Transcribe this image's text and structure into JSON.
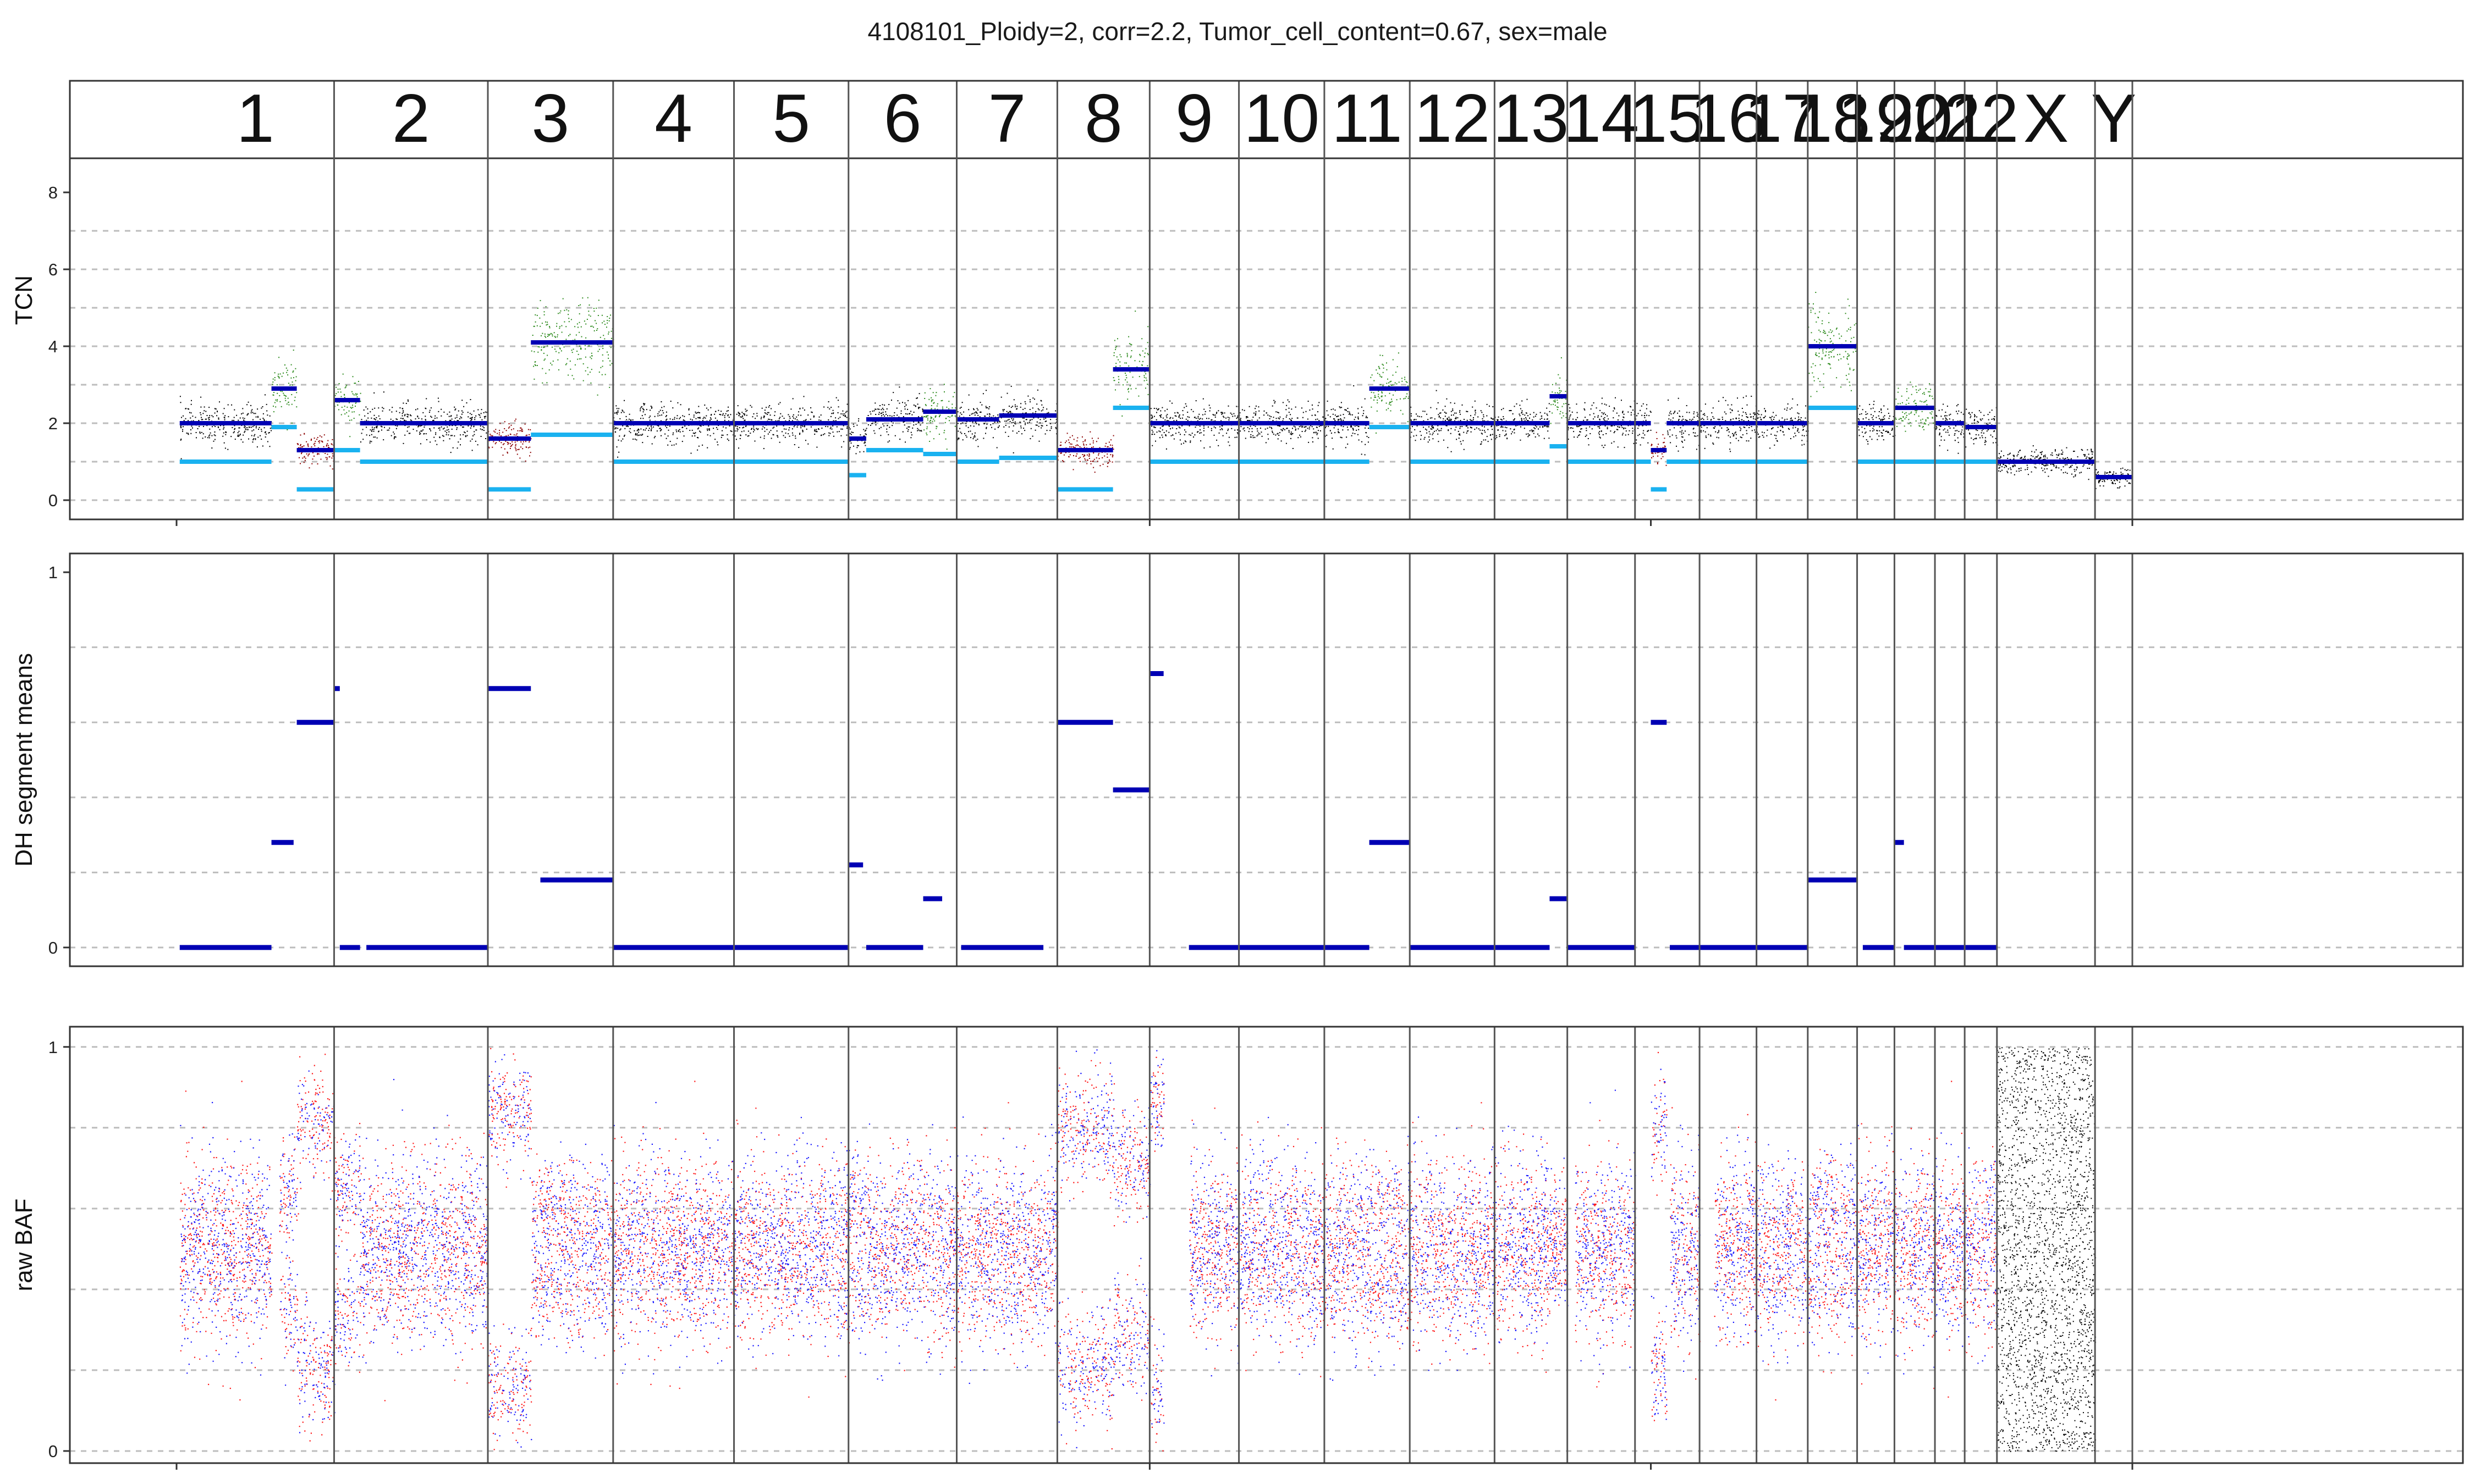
{
  "title": "4108101_Ploidy=2, corr=2.2, Tumor_cell_content=0.67, sex=male",
  "colors": {
    "normal_points": "#000000",
    "gain_points": "#2e8b1e",
    "loss_points": "#8b0000",
    "segment_line": "#0000b4",
    "minor_cn_line": "#1ab2f0",
    "baf_red": "#ff1a1a",
    "baf_blue": "#1a1aff",
    "grid": "#bdbdbd"
  },
  "chart_data": {
    "type": "scatter",
    "chromosomes": [
      {
        "name": "1",
        "start": 0,
        "end": 249
      },
      {
        "name": "2",
        "start": 249,
        "end": 492
      },
      {
        "name": "3",
        "start": 492,
        "end": 690
      },
      {
        "name": "4",
        "start": 690,
        "end": 881
      },
      {
        "name": "5",
        "start": 881,
        "end": 1062
      },
      {
        "name": "6",
        "start": 1062,
        "end": 1233
      },
      {
        "name": "7",
        "start": 1233,
        "end": 1392
      },
      {
        "name": "8",
        "start": 1392,
        "end": 1538
      },
      {
        "name": "9",
        "start": 1538,
        "end": 1679
      },
      {
        "name": "10",
        "start": 1679,
        "end": 1814
      },
      {
        "name": "11",
        "start": 1814,
        "end": 1949
      },
      {
        "name": "12",
        "start": 1949,
        "end": 2083
      },
      {
        "name": "13",
        "start": 2083,
        "end": 2198
      },
      {
        "name": "14",
        "start": 2198,
        "end": 2305
      },
      {
        "name": "15",
        "start": 2305,
        "end": 2407
      },
      {
        "name": "16",
        "start": 2407,
        "end": 2497
      },
      {
        "name": "17",
        "start": 2497,
        "end": 2578
      },
      {
        "name": "18",
        "start": 2578,
        "end": 2656
      },
      {
        "name": "19",
        "start": 2656,
        "end": 2715
      },
      {
        "name": "20",
        "start": 2715,
        "end": 2779
      },
      {
        "name": "21",
        "start": 2779,
        "end": 2826
      },
      {
        "name": "22",
        "start": 2826,
        "end": 2877
      },
      {
        "name": "X",
        "start": 2877,
        "end": 3032
      },
      {
        "name": "Y",
        "start": 3032,
        "end": 3091
      }
    ],
    "panels": [
      {
        "id": "tcn",
        "ylabel": "TCN",
        "ylim": [
          -0.5,
          8.8
        ],
        "yticks": [
          0,
          2,
          4,
          6,
          8
        ],
        "grid_y": [
          0,
          1,
          2,
          3,
          4,
          5,
          6,
          7
        ],
        "segments": [
          {
            "start": 5,
            "end": 150,
            "tcn": 2.0,
            "minor": 1.0,
            "cls": "normal"
          },
          {
            "start": 150,
            "end": 190,
            "tcn": 2.9,
            "minor": 1.9,
            "cls": "gain"
          },
          {
            "start": 190,
            "end": 249,
            "tcn": 1.3,
            "minor": 0.28,
            "cls": "loss"
          },
          {
            "start": 249,
            "end": 290,
            "tcn": 2.6,
            "minor": 1.3,
            "cls": "gain"
          },
          {
            "start": 290,
            "end": 492,
            "tcn": 2.0,
            "minor": 1.0,
            "cls": "normal"
          },
          {
            "start": 492,
            "end": 560,
            "tcn": 1.6,
            "minor": 0.28,
            "cls": "loss"
          },
          {
            "start": 560,
            "end": 690,
            "tcn": 4.1,
            "minor": 1.7,
            "cls": "gain"
          },
          {
            "start": 690,
            "end": 881,
            "tcn": 2.0,
            "minor": 1.0,
            "cls": "normal"
          },
          {
            "start": 881,
            "end": 1062,
            "tcn": 2.0,
            "minor": 1.0,
            "cls": "normal"
          },
          {
            "start": 1062,
            "end": 1090,
            "tcn": 1.6,
            "minor": 0.65,
            "cls": "normal"
          },
          {
            "start": 1090,
            "end": 1180,
            "tcn": 2.1,
            "minor": 1.3,
            "cls": "normal"
          },
          {
            "start": 1180,
            "end": 1233,
            "tcn": 2.3,
            "minor": 1.2,
            "cls": "gain"
          },
          {
            "start": 1233,
            "end": 1300,
            "tcn": 2.1,
            "minor": 1.0,
            "cls": "normal"
          },
          {
            "start": 1300,
            "end": 1392,
            "tcn": 2.2,
            "minor": 1.1,
            "cls": "normal"
          },
          {
            "start": 1392,
            "end": 1480,
            "tcn": 1.3,
            "minor": 0.28,
            "cls": "loss"
          },
          {
            "start": 1480,
            "end": 1538,
            "tcn": 3.4,
            "minor": 2.4,
            "cls": "gain"
          },
          {
            "start": 1538,
            "end": 1679,
            "tcn": 2.0,
            "minor": 1.0,
            "cls": "normal"
          },
          {
            "start": 1679,
            "end": 1814,
            "tcn": 2.0,
            "minor": 1.0,
            "cls": "normal"
          },
          {
            "start": 1814,
            "end": 1885,
            "tcn": 2.0,
            "minor": 1.0,
            "cls": "normal"
          },
          {
            "start": 1885,
            "end": 1949,
            "tcn": 2.9,
            "minor": 1.9,
            "cls": "gain"
          },
          {
            "start": 1949,
            "end": 2083,
            "tcn": 2.0,
            "minor": 1.0,
            "cls": "normal"
          },
          {
            "start": 2083,
            "end": 2170,
            "tcn": 2.0,
            "minor": 1.0,
            "cls": "normal"
          },
          {
            "start": 2170,
            "end": 2198,
            "tcn": 2.7,
            "minor": 1.4,
            "cls": "gain"
          },
          {
            "start": 2198,
            "end": 2305,
            "tcn": 2.0,
            "minor": 1.0,
            "cls": "normal"
          },
          {
            "start": 2305,
            "end": 2330,
            "tcn": 2.0,
            "minor": 1.0,
            "cls": "normal"
          },
          {
            "start": 2330,
            "end": 2355,
            "tcn": 1.3,
            "minor": 0.28,
            "cls": "loss"
          },
          {
            "start": 2355,
            "end": 2407,
            "tcn": 2.0,
            "minor": 1.0,
            "cls": "normal"
          },
          {
            "start": 2407,
            "end": 2497,
            "tcn": 2.0,
            "minor": 1.0,
            "cls": "normal"
          },
          {
            "start": 2497,
            "end": 2578,
            "tcn": 2.0,
            "minor": 1.0,
            "cls": "normal"
          },
          {
            "start": 2578,
            "end": 2656,
            "tcn": 4.0,
            "minor": 2.4,
            "cls": "gain"
          },
          {
            "start": 2656,
            "end": 2715,
            "tcn": 2.0,
            "minor": 1.0,
            "cls": "normal"
          },
          {
            "start": 2715,
            "end": 2779,
            "tcn": 2.4,
            "minor": 1.0,
            "cls": "gain"
          },
          {
            "start": 2779,
            "end": 2826,
            "tcn": 2.0,
            "minor": 1.0,
            "cls": "normal"
          },
          {
            "start": 2826,
            "end": 2877,
            "tcn": 1.9,
            "minor": 1.0,
            "cls": "normal"
          },
          {
            "start": 2877,
            "end": 3032,
            "tcn": 1.0,
            "minor": null,
            "cls": "normal"
          },
          {
            "start": 3032,
            "end": 3091,
            "tcn": 0.6,
            "minor": null,
            "cls": "normal"
          }
        ]
      },
      {
        "id": "dh",
        "ylabel": "DH segment means",
        "ylim": [
          -0.05,
          1.05
        ],
        "yticks": [
          0,
          1
        ],
        "grid_y": [
          0,
          0.2,
          0.4,
          0.6,
          0.8
        ],
        "segments": [
          {
            "start": 5,
            "end": 150,
            "dh": 0.0
          },
          {
            "start": 150,
            "end": 185,
            "dh": 0.28
          },
          {
            "start": 190,
            "end": 249,
            "dh": 0.6
          },
          {
            "start": 249,
            "end": 258,
            "dh": 0.69
          },
          {
            "start": 258,
            "end": 290,
            "dh": 0.0
          },
          {
            "start": 300,
            "end": 492,
            "dh": 0.0
          },
          {
            "start": 492,
            "end": 560,
            "dh": 0.69
          },
          {
            "start": 575,
            "end": 690,
            "dh": 0.18
          },
          {
            "start": 690,
            "end": 881,
            "dh": 0.0
          },
          {
            "start": 881,
            "end": 1062,
            "dh": 0.0
          },
          {
            "start": 1062,
            "end": 1085,
            "dh": 0.22
          },
          {
            "start": 1090,
            "end": 1180,
            "dh": 0.0
          },
          {
            "start": 1180,
            "end": 1210,
            "dh": 0.13
          },
          {
            "start": 1240,
            "end": 1370,
            "dh": 0.0
          },
          {
            "start": 1392,
            "end": 1480,
            "dh": 0.6
          },
          {
            "start": 1480,
            "end": 1538,
            "dh": 0.42
          },
          {
            "start": 1538,
            "end": 1560,
            "dh": 0.73
          },
          {
            "start": 1600,
            "end": 1679,
            "dh": 0.0
          },
          {
            "start": 1679,
            "end": 1814,
            "dh": 0.0
          },
          {
            "start": 1814,
            "end": 1885,
            "dh": 0.0
          },
          {
            "start": 1885,
            "end": 1949,
            "dh": 0.28
          },
          {
            "start": 1949,
            "end": 2083,
            "dh": 0.0
          },
          {
            "start": 2083,
            "end": 2170,
            "dh": 0.0
          },
          {
            "start": 2170,
            "end": 2198,
            "dh": 0.13
          },
          {
            "start": 2198,
            "end": 2305,
            "dh": 0.0
          },
          {
            "start": 2330,
            "end": 2355,
            "dh": 0.6
          },
          {
            "start": 2360,
            "end": 2407,
            "dh": 0.0
          },
          {
            "start": 2407,
            "end": 2497,
            "dh": 0.0
          },
          {
            "start": 2497,
            "end": 2578,
            "dh": 0.0
          },
          {
            "start": 2578,
            "end": 2656,
            "dh": 0.18
          },
          {
            "start": 2665,
            "end": 2715,
            "dh": 0.0
          },
          {
            "start": 2715,
            "end": 2730,
            "dh": 0.28
          },
          {
            "start": 2730,
            "end": 2779,
            "dh": 0.0
          },
          {
            "start": 2779,
            "end": 2826,
            "dh": 0.0
          },
          {
            "start": 2826,
            "end": 2877,
            "dh": 0.0
          }
        ]
      },
      {
        "id": "baf",
        "ylabel": "raw BAF",
        "ylim": [
          -0.03,
          1.05
        ],
        "yticks": [
          0,
          1
        ],
        "grid_y": [
          0,
          0.2,
          0.4,
          0.6,
          0.8,
          1.0
        ],
        "regions": [
          {
            "start": 5,
            "end": 150,
            "dh": 0.0
          },
          {
            "start": 162,
            "end": 190,
            "dh": 0.28
          },
          {
            "start": 190,
            "end": 249,
            "dh": 0.6
          },
          {
            "start": 249,
            "end": 290,
            "dh": 0.3
          },
          {
            "start": 290,
            "end": 492,
            "dh": 0.0
          },
          {
            "start": 492,
            "end": 560,
            "dh": 0.69
          },
          {
            "start": 560,
            "end": 690,
            "dh": 0.18
          },
          {
            "start": 690,
            "end": 881,
            "dh": 0.0
          },
          {
            "start": 881,
            "end": 1062,
            "dh": 0.0
          },
          {
            "start": 1062,
            "end": 1090,
            "dh": 0.22
          },
          {
            "start": 1090,
            "end": 1233,
            "dh": 0.05
          },
          {
            "start": 1233,
            "end": 1392,
            "dh": 0.0
          },
          {
            "start": 1392,
            "end": 1480,
            "dh": 0.6
          },
          {
            "start": 1480,
            "end": 1538,
            "dh": 0.42
          },
          {
            "start": 1538,
            "end": 1560,
            "dh": 0.73
          },
          {
            "start": 1600,
            "end": 1814,
            "dh": 0.0
          },
          {
            "start": 1814,
            "end": 1885,
            "dh": 0.0
          },
          {
            "start": 1885,
            "end": 1949,
            "dh": 0.2
          },
          {
            "start": 1949,
            "end": 2170,
            "dh": 0.0
          },
          {
            "start": 2170,
            "end": 2198,
            "dh": 0.1
          },
          {
            "start": 2210,
            "end": 2305,
            "dh": 0.0
          },
          {
            "start": 2330,
            "end": 2355,
            "dh": 0.6
          },
          {
            "start": 2360,
            "end": 2407,
            "dh": 0.0
          },
          {
            "start": 2430,
            "end": 2578,
            "dh": 0.0
          },
          {
            "start": 2578,
            "end": 2656,
            "dh": 0.18
          },
          {
            "start": 2656,
            "end": 2877,
            "dh": 0.0
          }
        ],
        "sex_chrom_region": {
          "start": 2877,
          "end": 3032
        }
      }
    ]
  }
}
